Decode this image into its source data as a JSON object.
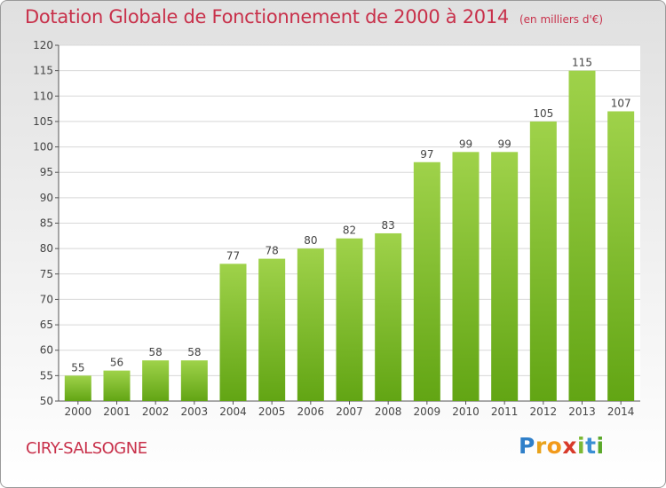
{
  "header": {
    "title": "Dotation Globale de Fonctionnement de 2000 à 2014",
    "subtitle": "(en milliers d'€)"
  },
  "footer": {
    "commune": "CIRY-SALSOGNE",
    "logo": "Proxiti"
  },
  "colors": {
    "accent": "#c8304a",
    "bar_light": "#9fd24a",
    "bar_dark": "#62a514"
  },
  "chart_data": {
    "type": "bar",
    "title": "Dotation Globale de Fonctionnement de 2000 à 2014",
    "subtitle": "(en milliers d'€)",
    "xlabel": "",
    "ylabel": "",
    "categories": [
      "2000",
      "2001",
      "2002",
      "2003",
      "2004",
      "2005",
      "2006",
      "2007",
      "2008",
      "2009",
      "2010",
      "2011",
      "2012",
      "2013",
      "2014"
    ],
    "values": [
      55,
      56,
      58,
      58,
      77,
      78,
      80,
      82,
      83,
      97,
      99,
      99,
      105,
      115,
      107
    ],
    "ylim": [
      50,
      120
    ],
    "yticks": [
      50,
      55,
      60,
      65,
      70,
      75,
      80,
      85,
      90,
      95,
      100,
      105,
      110,
      115,
      120
    ],
    "grid": true,
    "legend": "none"
  }
}
